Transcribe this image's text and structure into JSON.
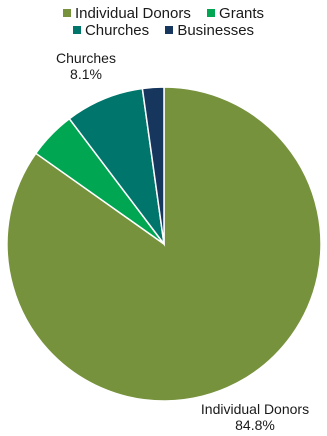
{
  "chart_data": {
    "type": "pie",
    "categories": [
      "Individual Donors",
      "Grants",
      "Churches",
      "Businesses"
    ],
    "values": [
      84.8,
      4.9,
      8.1,
      2.2
    ],
    "colors": [
      "#76923c",
      "#00a651",
      "#00756b",
      "#17365d"
    ],
    "legend": {
      "position": "top",
      "rows": [
        [
          "Individual Donors",
          "Grants"
        ],
        [
          "Churches",
          "Businesses"
        ]
      ]
    },
    "data_labels": [
      {
        "category": "Churches",
        "name": "Churches",
        "value": "8.1%"
      },
      {
        "category": "Individual Donors",
        "name": "Individual Donors",
        "value": "84.8%"
      }
    ],
    "title": ""
  }
}
